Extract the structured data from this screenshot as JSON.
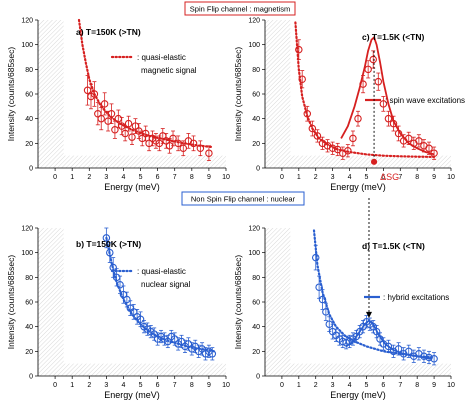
{
  "channel_labels": {
    "spin_flip": "Spin Flip channel : magnetism",
    "non_spin_flip": "Non Spin Flip channel : nuclear"
  },
  "colors": {
    "spin_flip": "#d62020",
    "non_spin_flip": "#2a5fd0"
  },
  "chart_data": [
    {
      "type": "scatter",
      "panel": "a",
      "title": "a) T=150K (>TN)",
      "xlabel": "Energy (meV)",
      "ylabel": "Intensity (counts/685sec)",
      "xlim": [
        -1,
        10
      ],
      "ylim": [
        0,
        120
      ],
      "xticks": [
        0,
        1,
        2,
        3,
        4,
        5,
        6,
        7,
        8,
        9,
        10
      ],
      "yticks": [
        0,
        20,
        40,
        60,
        80,
        100,
        120
      ],
      "color": "#d62020",
      "series": [
        {
          "name": ": quasi-elastic magnetic signal",
          "style": "dotted-line",
          "x": [
            1.4,
            1.6,
            1.8,
            2.0,
            2.3,
            2.7,
            3.2,
            3.8,
            4.5,
            5.5,
            6.5,
            7.5,
            8.5,
            9.2
          ],
          "y": [
            120,
            100,
            85,
            72,
            60,
            50,
            42,
            36,
            31,
            26,
            23,
            20,
            18,
            17
          ]
        },
        {
          "name": "",
          "style": "markers-errorbars",
          "x": [
            1.9,
            2.1,
            2.3,
            2.5,
            2.7,
            2.9,
            3.1,
            3.3,
            3.5,
            3.7,
            3.9,
            4.1,
            4.3,
            4.5,
            4.7,
            4.9,
            5.1,
            5.3,
            5.5,
            5.7,
            5.9,
            6.1,
            6.3,
            6.5,
            6.7,
            6.9,
            7.2,
            7.5,
            7.8,
            8.1,
            8.5,
            9.0
          ],
          "y": [
            63,
            58,
            60,
            44,
            40,
            52,
            38,
            44,
            31,
            40,
            34,
            28,
            36,
            25,
            34,
            30,
            24,
            28,
            20,
            24,
            22,
            20,
            26,
            22,
            18,
            24,
            20,
            16,
            22,
            20,
            16,
            12
          ],
          "err": [
            12,
            10,
            10,
            9,
            9,
            9,
            8,
            8,
            7,
            7,
            7,
            6,
            6,
            6,
            6,
            6,
            6,
            6,
            6,
            6,
            6,
            6,
            6,
            6,
            6,
            6,
            6,
            6,
            6,
            6,
            6,
            6
          ]
        }
      ]
    },
    {
      "type": "scatter",
      "panel": "c",
      "title": "c) T=1.5K (<TN)",
      "xlabel": "Energy (meV)",
      "ylabel": "Intensity (counts/685sec)",
      "xlim": [
        -1,
        10
      ],
      "ylim": [
        0,
        120
      ],
      "xticks": [
        0,
        1,
        2,
        3,
        4,
        5,
        6,
        7,
        8,
        9,
        10
      ],
      "yticks": [
        0,
        20,
        40,
        60,
        80,
        100,
        120
      ],
      "color": "#d62020",
      "annotation": "ΔSG",
      "series": [
        {
          "name": "",
          "style": "dotted-line",
          "x": [
            0.8,
            1.0,
            1.2,
            1.5,
            1.8,
            2.2,
            2.7,
            3.3,
            4.0,
            5.0,
            6.0,
            7.0,
            8.0,
            9.0
          ],
          "y": [
            118,
            80,
            58,
            42,
            32,
            24,
            19,
            15,
            13,
            11,
            10,
            9.5,
            9.2,
            9
          ]
        },
        {
          "name": ": spin wave excitations",
          "style": "solid-line",
          "x": [
            3.5,
            3.9,
            4.3,
            4.6,
            4.9,
            5.1,
            5.3,
            5.45,
            5.6,
            5.8,
            6.0,
            6.3,
            6.6,
            7.0,
            7.5,
            8.0,
            8.5,
            9.0
          ],
          "y": [
            24,
            34,
            50,
            65,
            82,
            95,
            104,
            106,
            100,
            86,
            70,
            52,
            38,
            28,
            20,
            16,
            13,
            11
          ]
        },
        {
          "name": "",
          "style": "markers-errorbars",
          "x": [
            1.0,
            1.2,
            1.5,
            1.8,
            2.1,
            2.4,
            2.7,
            3.0,
            3.3,
            3.6,
            3.9,
            4.2,
            4.5,
            4.8,
            5.1,
            5.4,
            5.7,
            6.0,
            6.3,
            6.6,
            6.9,
            7.2,
            7.5,
            7.8,
            8.1,
            8.4,
            8.7,
            9.0
          ],
          "y": [
            96,
            72,
            44,
            32,
            26,
            20,
            18,
            16,
            15,
            12,
            14,
            24,
            40,
            68,
            80,
            88,
            70,
            52,
            40,
            36,
            28,
            22,
            24,
            20,
            22,
            18,
            16,
            12
          ],
          "err": [
            8,
            7,
            6,
            6,
            5,
            5,
            5,
            5,
            5,
            5,
            5,
            6,
            6,
            7,
            7,
            7,
            7,
            6,
            6,
            6,
            6,
            5,
            5,
            5,
            5,
            5,
            5,
            5
          ]
        }
      ]
    },
    {
      "type": "scatter",
      "panel": "b",
      "title": "b) T=150K (>TN)",
      "xlabel": "Energy (meV)",
      "ylabel": "Intensity (counts/685sec)",
      "xlim": [
        -1,
        10
      ],
      "ylim": [
        0,
        120
      ],
      "xticks": [
        0,
        1,
        2,
        3,
        4,
        5,
        6,
        7,
        8,
        9,
        10
      ],
      "yticks": [
        0,
        20,
        40,
        60,
        80,
        100,
        120
      ],
      "color": "#2a5fd0",
      "series": [
        {
          "name": ": quasi-elastic nuclear signal",
          "style": "dotted-line",
          "x": [
            3.0,
            3.3,
            3.6,
            4.0,
            4.5,
            5.0,
            5.5,
            6.0,
            6.5,
            7.0,
            7.5,
            8.0,
            8.5,
            9.0,
            9.3
          ],
          "y": [
            112,
            92,
            76,
            62,
            50,
            42,
            36,
            32,
            29,
            27,
            25,
            23,
            22,
            21,
            20
          ]
        },
        {
          "name": "",
          "style": "markers-errorbars",
          "x": [
            3.0,
            3.2,
            3.4,
            3.6,
            3.8,
            4.0,
            4.2,
            4.4,
            4.6,
            4.8,
            5.0,
            5.2,
            5.4,
            5.6,
            5.8,
            6.0,
            6.2,
            6.4,
            6.6,
            6.8,
            7.0,
            7.2,
            7.4,
            7.6,
            7.8,
            8.0,
            8.2,
            8.4,
            8.6,
            8.8,
            9.0,
            9.2
          ],
          "y": [
            112,
            100,
            88,
            80,
            74,
            66,
            62,
            55,
            52,
            48,
            46,
            40,
            38,
            36,
            34,
            30,
            32,
            30,
            28,
            32,
            30,
            26,
            28,
            24,
            26,
            22,
            24,
            20,
            22,
            18,
            20,
            18
          ],
          "err": [
            8,
            8,
            8,
            7,
            7,
            7,
            6,
            6,
            6,
            6,
            6,
            5,
            5,
            5,
            5,
            5,
            5,
            5,
            5,
            5,
            5,
            5,
            5,
            5,
            5,
            5,
            5,
            5,
            5,
            5,
            5,
            5
          ]
        }
      ]
    },
    {
      "type": "scatter",
      "panel": "d",
      "title": "d) T=1.5K (<TN)",
      "xlabel": "Energy (meV)",
      "ylabel": "Intensity (counts/685sec)",
      "xlim": [
        -1,
        10
      ],
      "ylim": [
        0,
        120
      ],
      "xticks": [
        0,
        1,
        2,
        3,
        4,
        5,
        6,
        7,
        8,
        9,
        10
      ],
      "yticks": [
        0,
        20,
        40,
        60,
        80,
        100,
        120
      ],
      "color": "#2a5fd0",
      "series": [
        {
          "name": "",
          "style": "dotted-line",
          "x": [
            1.9,
            2.1,
            2.4,
            2.8,
            3.2,
            3.7,
            4.3,
            5.0,
            6.0,
            7.0,
            8.0,
            9.0
          ],
          "y": [
            118,
            90,
            68,
            50,
            40,
            33,
            28,
            24,
            20,
            18,
            16,
            15
          ]
        },
        {
          "name": ": hybrid excitations",
          "style": "solid-line",
          "x": [
            3.8,
            4.2,
            4.6,
            4.9,
            5.15,
            5.4,
            5.7,
            6.1,
            6.6,
            7.2,
            8.0,
            8.8
          ],
          "y": [
            24,
            28,
            36,
            42,
            45,
            42,
            34,
            26,
            21,
            18,
            16,
            14
          ]
        },
        {
          "name": "",
          "style": "markers-errorbars",
          "x": [
            2.0,
            2.2,
            2.4,
            2.6,
            2.8,
            3.0,
            3.2,
            3.4,
            3.6,
            3.8,
            4.0,
            4.2,
            4.4,
            4.6,
            4.8,
            5.0,
            5.2,
            5.4,
            5.6,
            5.8,
            6.0,
            6.3,
            6.6,
            6.9,
            7.2,
            7.5,
            7.8,
            8.1,
            8.4,
            8.7,
            9.0
          ],
          "y": [
            96,
            72,
            62,
            52,
            42,
            36,
            33,
            30,
            28,
            27,
            28,
            30,
            32,
            36,
            40,
            44,
            42,
            40,
            36,
            30,
            26,
            24,
            20,
            22,
            18,
            20,
            16,
            18,
            16,
            15,
            14
          ],
          "err": [
            10,
            9,
            8,
            7,
            6,
            6,
            5,
            5,
            5,
            5,
            5,
            5,
            5,
            5,
            5,
            5,
            5,
            5,
            5,
            5,
            5,
            5,
            5,
            5,
            5,
            5,
            5,
            5,
            5,
            5,
            5
          ]
        }
      ]
    }
  ]
}
